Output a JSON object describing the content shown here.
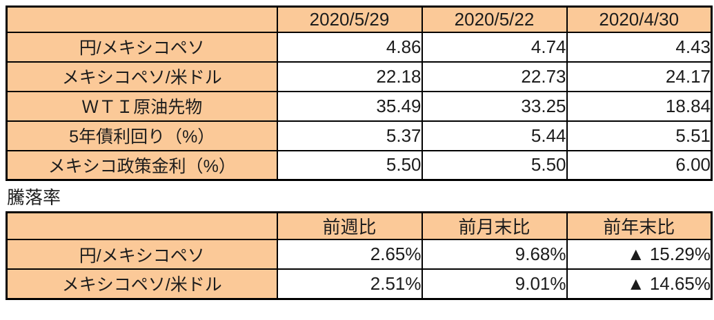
{
  "colors": {
    "header_bg": "#FBC998",
    "border": "#000000",
    "text": "#1C1C1C",
    "value_bg": "#FFFFFF"
  },
  "chart_data": [
    {
      "type": "table",
      "col_headers": [
        "",
        "2020/5/29",
        "2020/5/22",
        "2020/4/30"
      ],
      "rows": [
        {
          "label": "円/メキシコペソ",
          "values": [
            "4.86",
            "4.74",
            "4.43"
          ]
        },
        {
          "label": "メキシコペソ/米ドル",
          "values": [
            "22.18",
            "22.73",
            "24.17"
          ]
        },
        {
          "label": "ＷＴＩ原油先物",
          "values": [
            "35.49",
            "33.25",
            "18.84"
          ]
        },
        {
          "label": "5年債利回り（%）",
          "values": [
            "5.37",
            "5.44",
            "5.51"
          ]
        },
        {
          "label": "メキシコ政策金利（%）",
          "values": [
            "5.50",
            "5.50",
            "6.00"
          ]
        }
      ],
      "layout": {
        "header_fill": "#FBC998",
        "grid": "solid-black",
        "value_align": "right",
        "label_align": "center"
      }
    },
    {
      "type": "table",
      "title": "騰落率",
      "col_headers": [
        "",
        "前週比",
        "前月末比",
        "前年末比"
      ],
      "rows": [
        {
          "label": "円/メキシコペソ",
          "values": [
            "2.65%",
            "9.68%",
            "▲ 15.29%"
          ]
        },
        {
          "label": "メキシコペソ/米ドル",
          "values": [
            "2.51%",
            "9.01%",
            "▲ 14.65%"
          ]
        }
      ],
      "layout": {
        "header_fill": "#FBC998",
        "grid": "solid-black",
        "value_align": "right",
        "label_align": "center",
        "negative_marker": "▲"
      }
    }
  ]
}
